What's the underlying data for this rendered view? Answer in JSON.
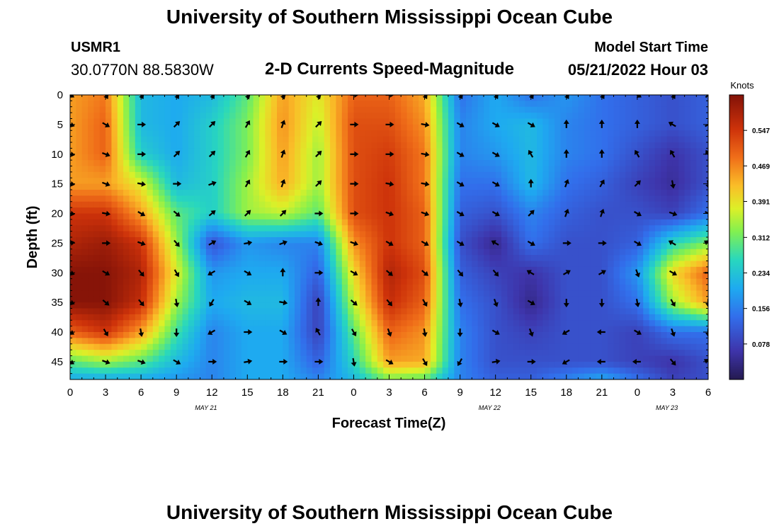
{
  "header": {
    "title": "University of Southern Mississippi Ocean Cube",
    "station_id": "USMR1",
    "station_coords": "30.0770N  88.5830W",
    "subtitle": "2-D Currents Speed-Magnitude",
    "model_start_label": "Model Start Time",
    "model_start_value": "05/21/2022 Hour 03"
  },
  "footer": {
    "title": "University of Southern Mississippi Ocean Cube"
  },
  "chart_data": {
    "type": "heatmap",
    "xlabel": "Forecast Time(Z)",
    "ylabel": "Depth (ft)",
    "x_ticks": [
      "0",
      "3",
      "6",
      "9",
      "12",
      "15",
      "18",
      "21",
      "0",
      "3",
      "6",
      "9",
      "12",
      "15",
      "18",
      "21",
      "0",
      "3",
      "6"
    ],
    "date_labels": [
      {
        "label": "MAY 21",
        "tick_index": 11.5
      },
      {
        "label": "MAY 22",
        "tick_index": 35.5
      },
      {
        "label": "MAY 23",
        "tick_index": 50.5
      }
    ],
    "y_ticks": [
      0,
      5,
      10,
      15,
      20,
      25,
      30,
      35,
      40,
      45
    ],
    "ylim": [
      0,
      48
    ],
    "colorbar": {
      "label": "Knots",
      "min": 0.0,
      "max": 0.625,
      "ticks": [
        0.078,
        0.156,
        0.234,
        0.312,
        0.391,
        0.469,
        0.547
      ]
    },
    "vectors_x_hours": [
      0,
      3,
      6,
      9,
      12,
      15,
      18,
      21,
      24,
      27,
      30,
      33,
      36,
      39,
      42,
      45,
      48,
      51,
      54
    ],
    "vectors_depth_ft": [
      0,
      5,
      10,
      15,
      20,
      25,
      30,
      35,
      40,
      45
    ],
    "speed_grid_hours": [
      0,
      3,
      6,
      9,
      12,
      15,
      18,
      21,
      24,
      27,
      30,
      33,
      36,
      39,
      42,
      45,
      48,
      51,
      54
    ],
    "speed_grid_depths_ft": [
      0,
      5,
      10,
      15,
      20,
      25,
      30,
      35,
      40,
      45,
      48
    ],
    "speed_grid_knots": [
      [
        0.45,
        0.48,
        0.22,
        0.2,
        0.22,
        0.3,
        0.45,
        0.38,
        0.5,
        0.5,
        0.44,
        0.14,
        0.2,
        0.14,
        0.18,
        0.14,
        0.12,
        0.1,
        0.12
      ],
      [
        0.45,
        0.5,
        0.22,
        0.2,
        0.25,
        0.32,
        0.46,
        0.36,
        0.52,
        0.52,
        0.46,
        0.16,
        0.2,
        0.22,
        0.16,
        0.14,
        0.12,
        0.1,
        0.12
      ],
      [
        0.45,
        0.5,
        0.25,
        0.2,
        0.25,
        0.32,
        0.45,
        0.34,
        0.52,
        0.54,
        0.48,
        0.16,
        0.18,
        0.22,
        0.16,
        0.14,
        0.1,
        0.06,
        0.1
      ],
      [
        0.45,
        0.45,
        0.38,
        0.22,
        0.25,
        0.34,
        0.44,
        0.34,
        0.52,
        0.55,
        0.48,
        0.14,
        0.14,
        0.22,
        0.14,
        0.12,
        0.08,
        0.05,
        0.1
      ],
      [
        0.55,
        0.55,
        0.45,
        0.3,
        0.25,
        0.34,
        0.36,
        0.3,
        0.52,
        0.55,
        0.5,
        0.12,
        0.1,
        0.16,
        0.12,
        0.1,
        0.1,
        0.08,
        0.14
      ],
      [
        0.58,
        0.6,
        0.55,
        0.34,
        0.1,
        0.18,
        0.16,
        0.16,
        0.46,
        0.55,
        0.5,
        0.1,
        0.04,
        0.14,
        0.1,
        0.1,
        0.12,
        0.26,
        0.32
      ],
      [
        0.62,
        0.62,
        0.58,
        0.38,
        0.18,
        0.2,
        0.2,
        0.12,
        0.4,
        0.58,
        0.52,
        0.12,
        0.08,
        0.06,
        0.1,
        0.1,
        0.18,
        0.4,
        0.5
      ],
      [
        0.62,
        0.62,
        0.56,
        0.34,
        0.2,
        0.22,
        0.22,
        0.08,
        0.36,
        0.56,
        0.5,
        0.14,
        0.1,
        0.04,
        0.1,
        0.1,
        0.14,
        0.34,
        0.45
      ],
      [
        0.5,
        0.55,
        0.45,
        0.28,
        0.16,
        0.2,
        0.2,
        0.08,
        0.3,
        0.5,
        0.46,
        0.16,
        0.1,
        0.08,
        0.1,
        0.1,
        0.08,
        0.14,
        0.14
      ],
      [
        0.3,
        0.34,
        0.3,
        0.22,
        0.16,
        0.2,
        0.2,
        0.12,
        0.26,
        0.45,
        0.44,
        0.16,
        0.1,
        0.1,
        0.1,
        0.1,
        0.08,
        0.06,
        0.1
      ],
      [
        0.2,
        0.2,
        0.2,
        0.18,
        0.16,
        0.2,
        0.2,
        0.16,
        0.22,
        0.32,
        0.3,
        0.16,
        0.12,
        0.12,
        0.16,
        0.2,
        0.14,
        0.08,
        0.1
      ]
    ],
    "vector_directions_deg_cw_from_north": [
      [
        120,
        150,
        150,
        150,
        150,
        160,
        160,
        160,
        90,
        90,
        150,
        150,
        150,
        150,
        150,
        150,
        120,
        150,
        45
      ],
      [
        110,
        120,
        90,
        45,
        45,
        30,
        20,
        45,
        90,
        90,
        100,
        120,
        120,
        120,
        0,
        0,
        0,
        300,
        60
      ],
      [
        100,
        110,
        90,
        45,
        45,
        30,
        20,
        45,
        90,
        90,
        100,
        120,
        120,
        330,
        0,
        0,
        330,
        330,
        330
      ],
      [
        100,
        110,
        100,
        90,
        70,
        30,
        20,
        45,
        90,
        100,
        100,
        120,
        120,
        0,
        20,
        30,
        45,
        170,
        170
      ],
      [
        100,
        100,
        120,
        130,
        50,
        45,
        45,
        90,
        90,
        110,
        110,
        120,
        120,
        45,
        20,
        20,
        120,
        110,
        120
      ],
      [
        80,
        90,
        110,
        140,
        60,
        80,
        70,
        110,
        110,
        120,
        120,
        120,
        300,
        120,
        90,
        90,
        120,
        300,
        300
      ],
      [
        110,
        120,
        140,
        150,
        240,
        120,
        0,
        90,
        120,
        130,
        130,
        140,
        140,
        300,
        60,
        60,
        160,
        120,
        90
      ],
      [
        110,
        130,
        140,
        170,
        210,
        120,
        100,
        0,
        130,
        140,
        150,
        170,
        160,
        120,
        180,
        180,
        170,
        150,
        180
      ],
      [
        120,
        150,
        170,
        180,
        240,
        90,
        120,
        330,
        150,
        160,
        170,
        180,
        120,
        160,
        240,
        270,
        120,
        160,
        180
      ],
      [
        120,
        110,
        110,
        120,
        90,
        80,
        90,
        90,
        170,
        120,
        150,
        210,
        80,
        90,
        240,
        270,
        270,
        140,
        300
      ]
    ]
  }
}
